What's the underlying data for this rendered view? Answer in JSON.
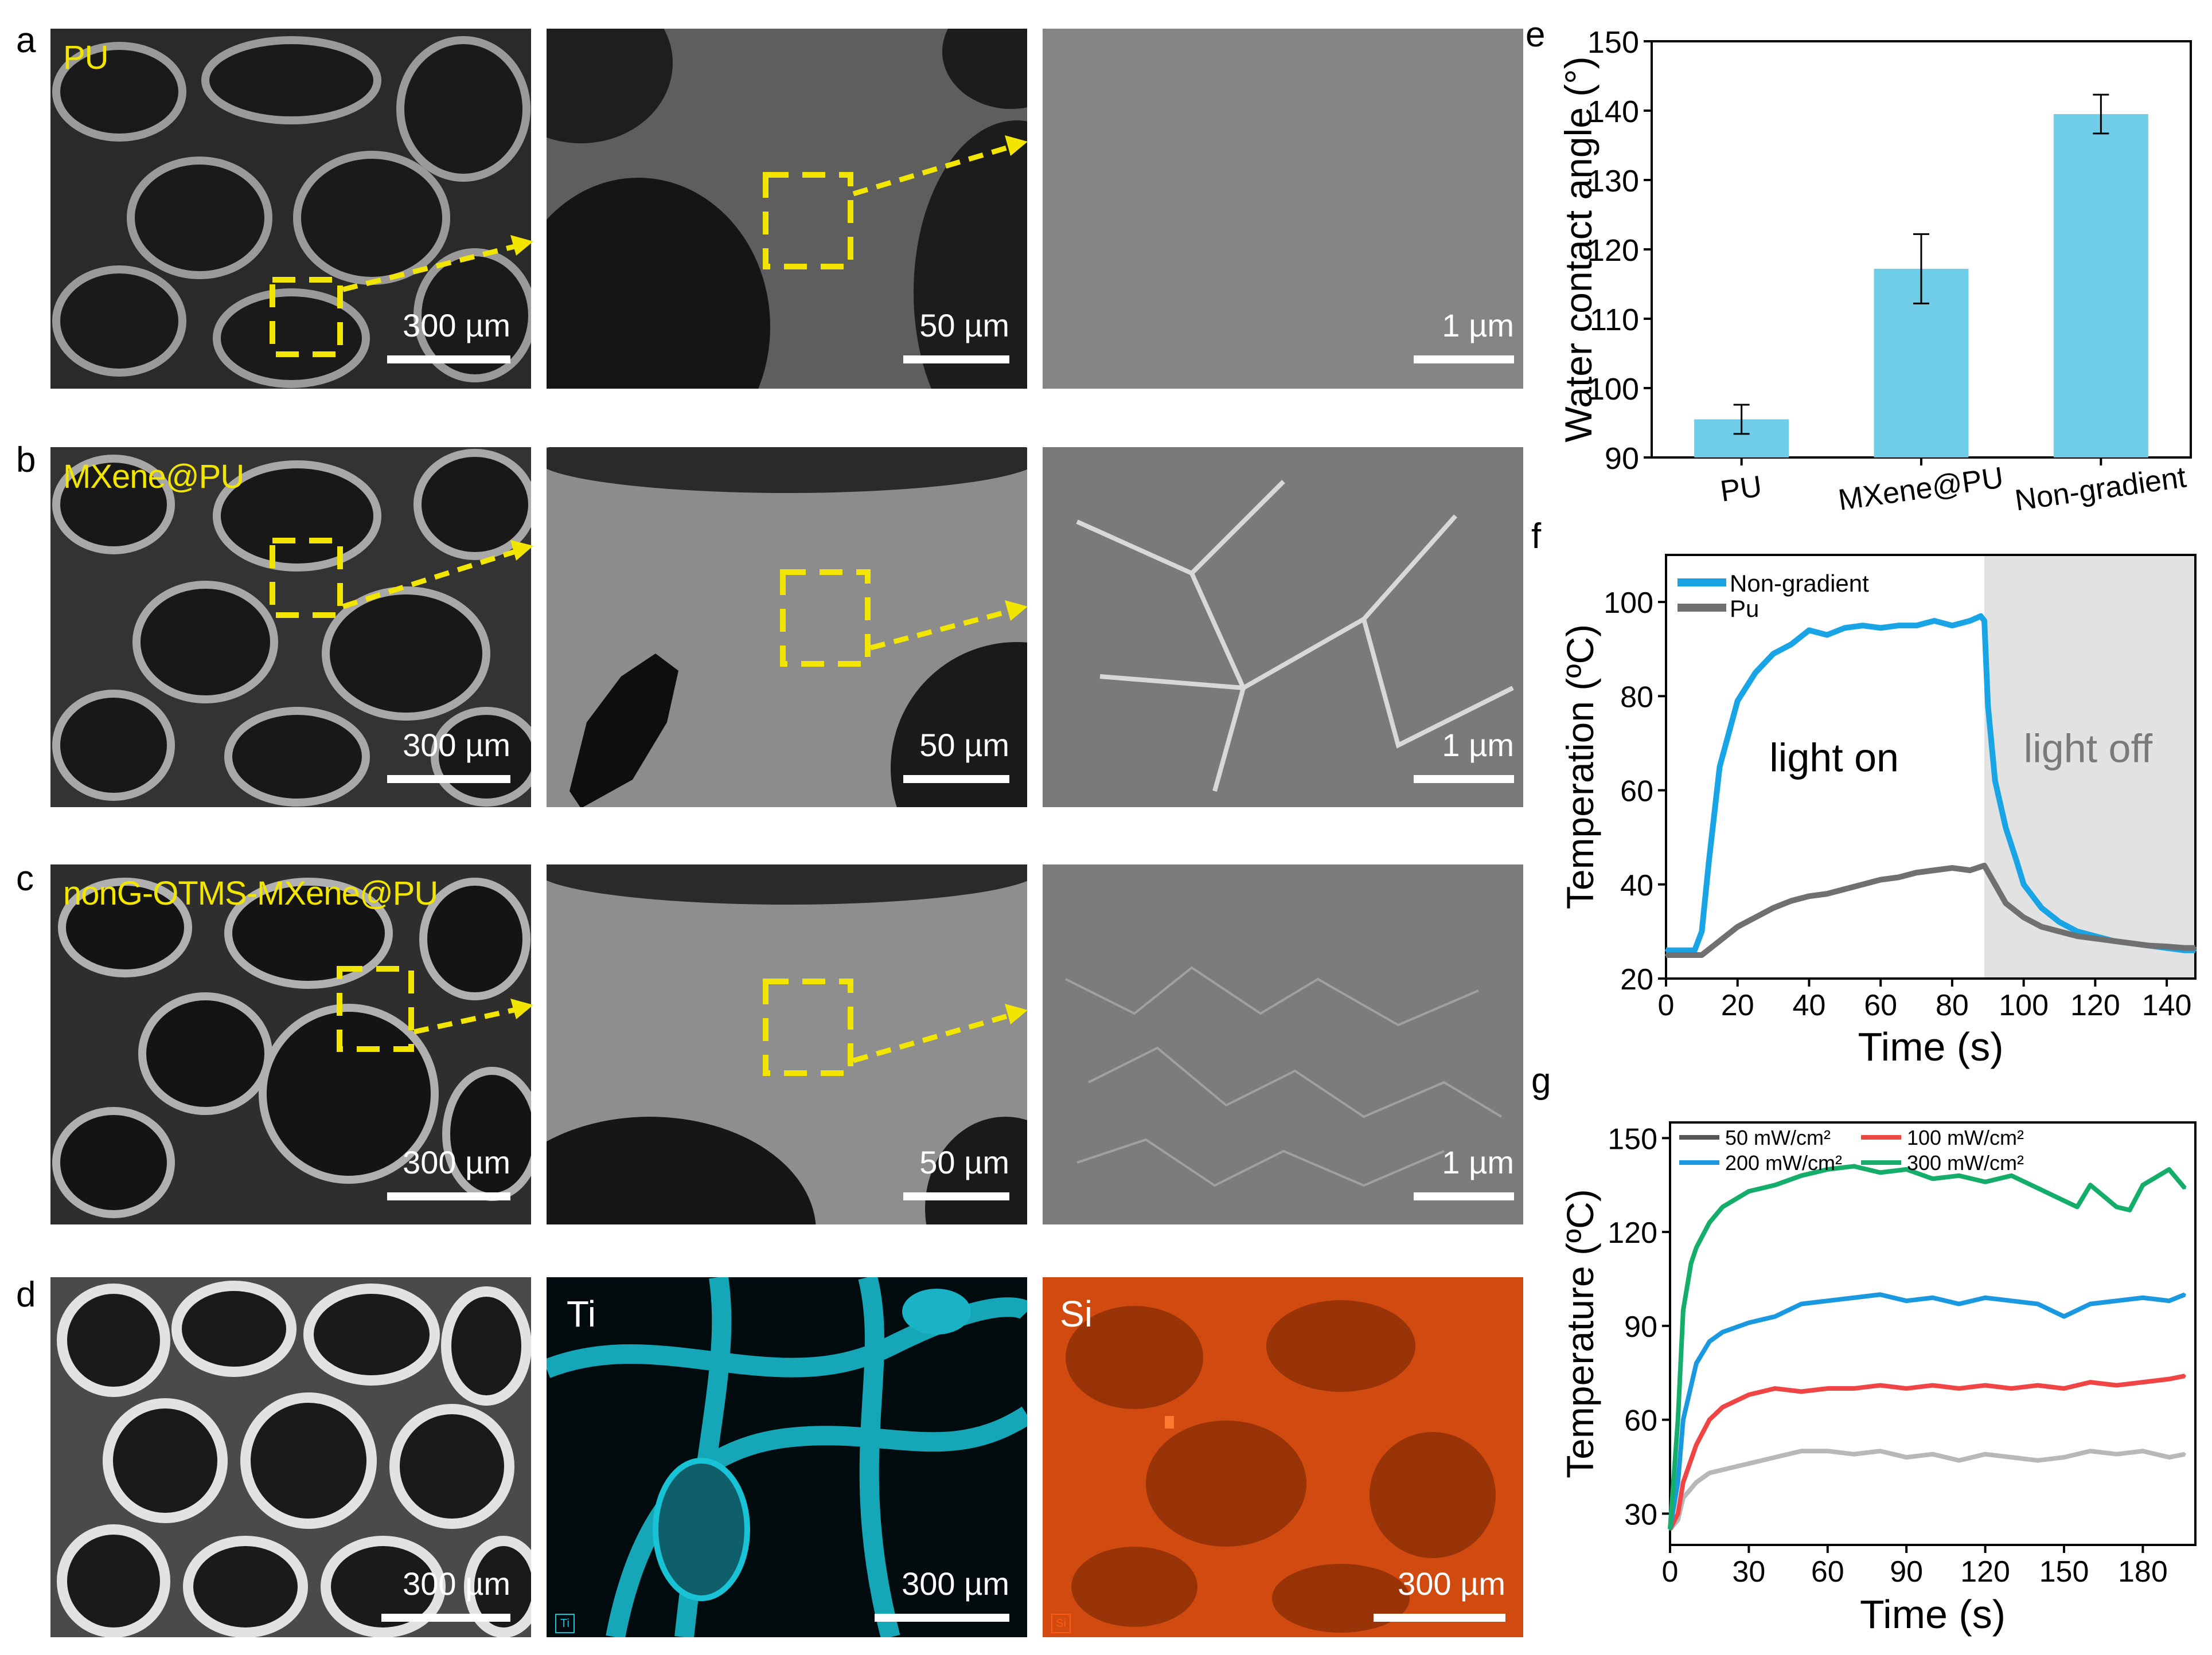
{
  "figure": {
    "panel_letters": [
      "a",
      "b",
      "c",
      "d",
      "e",
      "f",
      "g"
    ],
    "rows": [
      {
        "letter": "a",
        "sample": "PU",
        "scales": [
          "300 µm",
          "50 µm",
          "1 µm"
        ]
      },
      {
        "letter": "b",
        "sample": "MXene@PU",
        "scales": [
          "300 µm",
          "50 µm",
          "1 µm"
        ]
      },
      {
        "letter": "c",
        "sample": "nonG-OTMS-MXene@PU",
        "scales": [
          "300 µm",
          "50 µm",
          "1 µm"
        ]
      }
    ],
    "mapping": {
      "letter": "d",
      "scales": [
        "300 µm",
        "300 µm",
        "300 µm"
      ],
      "element_labels": [
        "Ti",
        "Si"
      ],
      "element_tags": [
        "Ti",
        "Si"
      ],
      "colors": {
        "ti": "#19c3d6",
        "si": "#ff5a14"
      }
    },
    "colors": {
      "highlight": "#f2e600",
      "bar": "#6fcde8",
      "non_gradient": "#19a4e6",
      "pu": "#707070",
      "light_off_bg": "#e2e2e2",
      "p50": "#b8b8b8",
      "p100": "#f04545",
      "p200": "#1a99e0",
      "p300": "#15ad6a"
    }
  },
  "chart_data": [
    {
      "panel": "e",
      "type": "bar",
      "ylabel": "Water contact angle (°)",
      "ylim": [
        90,
        150
      ],
      "yticks": [
        90,
        100,
        110,
        120,
        130,
        140,
        150
      ],
      "categories": [
        "PU",
        "MXene@PU",
        "Non-gradient"
      ],
      "values": [
        95.5,
        117.2,
        139.5
      ],
      "errors": [
        2.1,
        5.0,
        2.8
      ]
    },
    {
      "panel": "f",
      "type": "line",
      "xlabel": "Time (s)",
      "ylabel": "Temperation (ºC)",
      "xlim": [
        0,
        148
      ],
      "ylim": [
        20,
        110
      ],
      "xticks": [
        0,
        20,
        40,
        60,
        80,
        100,
        120,
        140
      ],
      "yticks": [
        20,
        40,
        60,
        80,
        100
      ],
      "annotations": {
        "on": "light on",
        "off": "light off",
        "off_start": 89
      },
      "series": [
        {
          "name": "Non-gradient",
          "x": [
            0,
            5,
            8,
            10,
            12,
            15,
            20,
            25,
            30,
            35,
            40,
            45,
            50,
            55,
            60,
            65,
            70,
            75,
            80,
            85,
            88,
            89,
            90,
            92,
            95,
            98,
            100,
            105,
            110,
            115,
            120,
            125,
            130,
            135,
            140,
            145,
            148
          ],
          "y": [
            26,
            26,
            26,
            30,
            45,
            65,
            79,
            85,
            89,
            91,
            94,
            93,
            94.5,
            95,
            94.5,
            95,
            95,
            96,
            95,
            96,
            97,
            96,
            78,
            62,
            52,
            45,
            40,
            35,
            32,
            30,
            29,
            28,
            27.5,
            27,
            26.5,
            26,
            26
          ]
        },
        {
          "name": "Pu",
          "x": [
            0,
            5,
            10,
            15,
            20,
            25,
            30,
            35,
            40,
            45,
            50,
            55,
            60,
            65,
            70,
            75,
            80,
            85,
            89,
            92,
            95,
            100,
            105,
            110,
            115,
            120,
            125,
            130,
            135,
            140,
            145,
            148
          ],
          "y": [
            25,
            25,
            25,
            28,
            31,
            33,
            35,
            36.5,
            37.5,
            38,
            39,
            40,
            41,
            41.5,
            42.5,
            43,
            43.5,
            43,
            44,
            40,
            36,
            33,
            31,
            30,
            29,
            28.5,
            28,
            27.5,
            27,
            26.8,
            26.5,
            26.5
          ]
        }
      ]
    },
    {
      "panel": "g",
      "type": "line",
      "xlabel": "Time (s)",
      "ylabel": "Temperature (ºC)",
      "xlim": [
        0,
        200
      ],
      "ylim": [
        20,
        155
      ],
      "xticks": [
        0,
        30,
        60,
        90,
        120,
        150,
        180
      ],
      "yticks": [
        30,
        60,
        90,
        120,
        150
      ],
      "series": [
        {
          "name": "50 mW/cm²",
          "x": [
            0,
            3,
            5,
            10,
            15,
            20,
            30,
            40,
            50,
            60,
            70,
            80,
            90,
            100,
            110,
            120,
            130,
            140,
            150,
            160,
            170,
            180,
            190,
            196
          ],
          "y": [
            25,
            28,
            35,
            40,
            43,
            44,
            46,
            48,
            50,
            50,
            49,
            50,
            48,
            49,
            47,
            49,
            48,
            47,
            48,
            50,
            49,
            50,
            48,
            49
          ]
        },
        {
          "name": "100 mW/cm²",
          "x": [
            0,
            3,
            5,
            10,
            15,
            20,
            30,
            40,
            50,
            60,
            70,
            80,
            90,
            100,
            110,
            120,
            130,
            140,
            150,
            160,
            170,
            180,
            190,
            196
          ],
          "y": [
            25,
            30,
            40,
            52,
            60,
            64,
            68,
            70,
            69,
            70,
            70,
            71,
            70,
            71,
            70,
            71,
            70,
            71,
            70,
            72,
            71,
            72,
            73,
            74
          ]
        },
        {
          "name": "200 mW/cm²",
          "x": [
            0,
            3,
            5,
            10,
            15,
            20,
            30,
            40,
            50,
            60,
            70,
            80,
            90,
            100,
            110,
            120,
            130,
            140,
            150,
            160,
            170,
            180,
            190,
            196
          ],
          "y": [
            25,
            40,
            60,
            78,
            85,
            88,
            91,
            93,
            97,
            98,
            99,
            100,
            98,
            99,
            97,
            99,
            98,
            97,
            93,
            97,
            98,
            99,
            98,
            100
          ]
        },
        {
          "name": "300 mW/cm²",
          "x": [
            0,
            3,
            5,
            8,
            10,
            15,
            20,
            30,
            40,
            50,
            60,
            70,
            80,
            90,
            100,
            110,
            120,
            130,
            140,
            150,
            155,
            160,
            170,
            175,
            180,
            190,
            196
          ],
          "y": [
            25,
            60,
            95,
            110,
            115,
            123,
            128,
            133,
            135,
            138,
            140,
            141,
            139,
            140,
            137,
            138,
            136,
            138,
            134,
            130,
            128,
            135,
            128,
            127,
            135,
            140,
            134
          ]
        }
      ]
    }
  ]
}
